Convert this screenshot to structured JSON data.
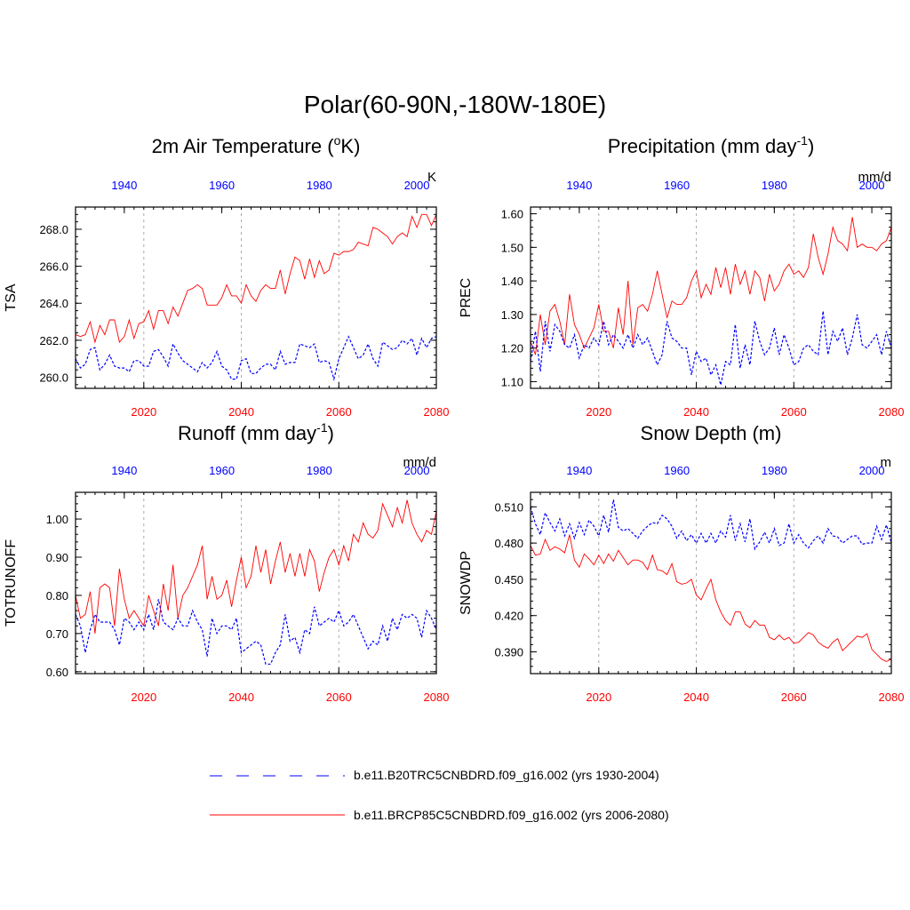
{
  "main_title": "Polar(60-90N,-180W-180E)",
  "colors": {
    "model_a": "#ff0000",
    "model_b": "#0000ff",
    "grid": "#aaaaaa",
    "axis": "#000000"
  },
  "legend": [
    {
      "label": "b.e11.B20TRC5CNBDRD.f09_g16.002 (yrs 1930-2004)",
      "color": "#0000ff",
      "style": "dashed"
    },
    {
      "label": "b.e11.BRCP85C5CNBDRD.f09_g16.002 (yrs 2006-2080)",
      "color": "#ff0000",
      "style": "solid"
    }
  ],
  "chart_data": [
    {
      "type": "line",
      "title_main": "2m Air Temperature (",
      "title_sup": "o",
      "title_end": "K)",
      "ylabel": "TSA",
      "units": "K",
      "ylim": [
        259.4,
        269.2
      ],
      "yticks": [
        260.0,
        262.0,
        264.0,
        266.0,
        268.0
      ],
      "ytick_labels": [
        "260.0",
        "262.0",
        "264.0",
        "266.0",
        "268.0"
      ],
      "xlim_bottom": [
        2006,
        2080
      ],
      "xticks_bottom": [
        "2020",
        "2040",
        "2060",
        "2080"
      ],
      "xlim_top": [
        1930,
        2004
      ],
      "xticks_top": [
        "1940",
        "1960",
        "1980",
        "2000"
      ],
      "series": [
        {
          "name": "b.e11.BRCP85C5CNBDRD.f09_g16.002",
          "x_start": 2006,
          "color": "#ff0000",
          "dash": false,
          "values": [
            262.3,
            262.2,
            262.3,
            263.0,
            261.9,
            262.8,
            262.3,
            263.1,
            263.1,
            261.9,
            262.2,
            263.1,
            262.1,
            262.9,
            263.0,
            263.6,
            262.6,
            263.6,
            263.6,
            262.9,
            263.8,
            263.3,
            264.0,
            264.7,
            264.8,
            265.0,
            264.8,
            263.9,
            263.9,
            263.9,
            264.3,
            265.0,
            264.4,
            264.4,
            264.0,
            265.0,
            264.4,
            264.1,
            264.7,
            265.0,
            264.8,
            264.8,
            265.8,
            264.5,
            265.6,
            266.5,
            266.3,
            265.3,
            266.4,
            265.4,
            266.3,
            265.6,
            265.8,
            266.7,
            266.6,
            266.8,
            266.8,
            266.9,
            267.3,
            267.2,
            267.1,
            268.1,
            268.0,
            267.8,
            267.6,
            267.2,
            267.6,
            267.8,
            267.6,
            268.7,
            268.1,
            268.8,
            268.8,
            268.2,
            268.8
          ]
        },
        {
          "name": "b.e11.B20TRC5CNBDRD.f09_g16.002",
          "x_start": 2006,
          "color": "#0000ff",
          "dash": true,
          "values": [
            261.0,
            260.5,
            260.7,
            261.5,
            261.6,
            260.4,
            260.7,
            261.2,
            260.6,
            260.5,
            260.5,
            260.3,
            260.9,
            260.9,
            260.6,
            260.6,
            261.4,
            261.5,
            261.1,
            260.6,
            261.8,
            261.3,
            260.9,
            260.7,
            260.5,
            260.3,
            260.8,
            260.5,
            260.8,
            261.4,
            260.6,
            260.4,
            259.9,
            259.9,
            260.9,
            261.0,
            260.2,
            260.2,
            260.5,
            260.7,
            260.7,
            260.4,
            261.4,
            260.7,
            260.8,
            260.8,
            261.8,
            261.7,
            261.6,
            261.8,
            260.8,
            260.9,
            260.8,
            259.9,
            261.0,
            261.6,
            262.2,
            261.6,
            261.0,
            261.2,
            261.8,
            261.0,
            260.6,
            261.9,
            261.7,
            261.5,
            261.6,
            262.0,
            261.8,
            262.1,
            261.2,
            262.1,
            261.6,
            262.1,
            262.2
          ]
        }
      ]
    },
    {
      "type": "line",
      "title_main": "Precipitation (mm day",
      "title_sup": "-1",
      "title_end": ")",
      "ylabel": "PREC",
      "units": "mm/d",
      "ylim": [
        1.08,
        1.62
      ],
      "yticks": [
        1.1,
        1.2,
        1.3,
        1.4,
        1.5,
        1.6
      ],
      "ytick_labels": [
        "1.10",
        "1.20",
        "1.30",
        "1.40",
        "1.50",
        "1.60"
      ],
      "xlim_bottom": [
        2006,
        2080
      ],
      "xticks_bottom": [
        "2020",
        "2040",
        "2060",
        "2080"
      ],
      "xlim_top": [
        1930,
        2004
      ],
      "xticks_top": [
        "1940",
        "1960",
        "1980",
        "2000"
      ],
      "series": [
        {
          "name": "b.e11.BRCP85C5CNBDRD.f09_g16.002",
          "x_start": 2006,
          "color": "#ff0000",
          "dash": false,
          "values": [
            1.22,
            1.18,
            1.3,
            1.21,
            1.31,
            1.33,
            1.28,
            1.21,
            1.36,
            1.27,
            1.24,
            1.2,
            1.23,
            1.26,
            1.33,
            1.25,
            1.25,
            1.2,
            1.32,
            1.24,
            1.4,
            1.21,
            1.32,
            1.33,
            1.31,
            1.36,
            1.43,
            1.36,
            1.29,
            1.34,
            1.33,
            1.33,
            1.35,
            1.4,
            1.43,
            1.35,
            1.39,
            1.36,
            1.44,
            1.38,
            1.44,
            1.36,
            1.45,
            1.39,
            1.43,
            1.36,
            1.43,
            1.41,
            1.34,
            1.42,
            1.37,
            1.39,
            1.43,
            1.45,
            1.42,
            1.43,
            1.41,
            1.44,
            1.54,
            1.47,
            1.42,
            1.48,
            1.56,
            1.52,
            1.51,
            1.49,
            1.59,
            1.5,
            1.51,
            1.5,
            1.5,
            1.49,
            1.51,
            1.52,
            1.56
          ]
        },
        {
          "name": "b.e11.B20TRC5CNBDRD.f09_g16.002",
          "x_start": 2006,
          "color": "#0000ff",
          "dash": true,
          "values": [
            1.16,
            1.25,
            1.13,
            1.28,
            1.19,
            1.27,
            1.25,
            1.21,
            1.2,
            1.24,
            1.17,
            1.21,
            1.2,
            1.23,
            1.21,
            1.28,
            1.21,
            1.24,
            1.22,
            1.2,
            1.24,
            1.2,
            1.24,
            1.21,
            1.23,
            1.19,
            1.15,
            1.18,
            1.28,
            1.23,
            1.22,
            1.2,
            1.2,
            1.12,
            1.19,
            1.16,
            1.17,
            1.12,
            1.15,
            1.09,
            1.16,
            1.15,
            1.27,
            1.14,
            1.21,
            1.15,
            1.28,
            1.22,
            1.18,
            1.2,
            1.26,
            1.18,
            1.24,
            1.2,
            1.15,
            1.16,
            1.2,
            1.21,
            1.19,
            1.18,
            1.31,
            1.18,
            1.25,
            1.22,
            1.26,
            1.18,
            1.23,
            1.3,
            1.21,
            1.2,
            1.22,
            1.24,
            1.18,
            1.25,
            1.2
          ]
        }
      ]
    },
    {
      "type": "line",
      "title_main": "Runoff (mm day",
      "title_sup": "-1",
      "title_end": ")",
      "ylabel": "TOTRUNOFF",
      "units": "mm/d",
      "ylim": [
        0.595,
        1.07
      ],
      "yticks": [
        0.6,
        0.7,
        0.8,
        0.9,
        1.0
      ],
      "ytick_labels": [
        "0.60",
        "0.70",
        "0.80",
        "0.90",
        "1.00"
      ],
      "xlim_bottom": [
        2006,
        2080
      ],
      "xticks_bottom": [
        "2020",
        "2040",
        "2060",
        "2080"
      ],
      "xlim_top": [
        1930,
        2004
      ],
      "xticks_top": [
        "1940",
        "1960",
        "1980",
        "2000"
      ],
      "series": [
        {
          "name": "b.e11.BRCP85C5CNBDRD.f09_g16.002",
          "x_start": 2006,
          "color": "#ff0000",
          "dash": false,
          "values": [
            0.8,
            0.74,
            0.75,
            0.81,
            0.7,
            0.82,
            0.83,
            0.82,
            0.72,
            0.87,
            0.79,
            0.74,
            0.76,
            0.74,
            0.72,
            0.8,
            0.76,
            0.72,
            0.83,
            0.76,
            0.88,
            0.74,
            0.8,
            0.82,
            0.85,
            0.88,
            0.93,
            0.79,
            0.85,
            0.79,
            0.8,
            0.84,
            0.77,
            0.84,
            0.9,
            0.82,
            0.85,
            0.93,
            0.86,
            0.92,
            0.83,
            0.89,
            0.94,
            0.86,
            0.91,
            0.85,
            0.91,
            0.85,
            0.92,
            0.89,
            0.81,
            0.86,
            0.9,
            0.92,
            0.88,
            0.93,
            0.89,
            0.96,
            0.94,
            0.99,
            0.96,
            0.95,
            0.97,
            1.04,
            1.01,
            0.98,
            1.03,
            0.99,
            1.05,
            0.99,
            0.96,
            0.94,
            0.97,
            0.96,
            1.02
          ]
        },
        {
          "name": "b.e11.B20TRC5CNBDRD.f09_g16.002",
          "x_start": 2006,
          "color": "#0000ff",
          "dash": true,
          "values": [
            0.75,
            0.72,
            0.65,
            0.71,
            0.75,
            0.73,
            0.73,
            0.73,
            0.71,
            0.67,
            0.74,
            0.73,
            0.71,
            0.73,
            0.71,
            0.75,
            0.71,
            0.79,
            0.73,
            0.72,
            0.71,
            0.74,
            0.72,
            0.72,
            0.76,
            0.73,
            0.71,
            0.64,
            0.74,
            0.7,
            0.72,
            0.72,
            0.71,
            0.74,
            0.65,
            0.66,
            0.67,
            0.68,
            0.67,
            0.62,
            0.62,
            0.65,
            0.67,
            0.75,
            0.68,
            0.69,
            0.65,
            0.71,
            0.7,
            0.77,
            0.72,
            0.73,
            0.74,
            0.73,
            0.76,
            0.72,
            0.73,
            0.75,
            0.72,
            0.69,
            0.66,
            0.68,
            0.67,
            0.72,
            0.68,
            0.74,
            0.71,
            0.75,
            0.74,
            0.75,
            0.74,
            0.69,
            0.76,
            0.74,
            0.71
          ]
        }
      ]
    },
    {
      "type": "line",
      "title_main": "Snow Depth (m)",
      "title_sup": "",
      "title_end": "",
      "ylabel": "SNOWDP",
      "units": "m",
      "ylim": [
        0.372,
        0.522
      ],
      "yticks": [
        0.39,
        0.42,
        0.45,
        0.48,
        0.51
      ],
      "ytick_labels": [
        "0.390",
        "0.420",
        "0.450",
        "0.480",
        "0.510"
      ],
      "xlim_bottom": [
        2006,
        2080
      ],
      "xticks_bottom": [
        "2020",
        "2040",
        "2060",
        "2080"
      ],
      "xlim_top": [
        1930,
        2004
      ],
      "xticks_top": [
        "1940",
        "1960",
        "1980",
        "2000"
      ],
      "series": [
        {
          "name": "b.e11.BRCP85C5CNBDRD.f09_g16.002",
          "x_start": 2006,
          "color": "#ff0000",
          "dash": false,
          "values": [
            0.478,
            0.47,
            0.471,
            0.483,
            0.474,
            0.477,
            0.475,
            0.472,
            0.487,
            0.466,
            0.46,
            0.471,
            0.467,
            0.462,
            0.47,
            0.463,
            0.471,
            0.465,
            0.474,
            0.468,
            0.462,
            0.466,
            0.466,
            0.464,
            0.458,
            0.47,
            0.458,
            0.457,
            0.454,
            0.463,
            0.448,
            0.446,
            0.447,
            0.45,
            0.437,
            0.433,
            0.442,
            0.45,
            0.433,
            0.423,
            0.416,
            0.412,
            0.423,
            0.423,
            0.413,
            0.41,
            0.416,
            0.412,
            0.412,
            0.402,
            0.4,
            0.404,
            0.4,
            0.402,
            0.397,
            0.398,
            0.402,
            0.406,
            0.404,
            0.398,
            0.395,
            0.393,
            0.398,
            0.401,
            0.391,
            0.395,
            0.399,
            0.403,
            0.402,
            0.405,
            0.392,
            0.388,
            0.384,
            0.382,
            0.384
          ]
        },
        {
          "name": "b.e11.B20TRC5CNBDRD.f09_g16.002",
          "x_start": 2006,
          "color": "#0000ff",
          "dash": true,
          "values": [
            0.51,
            0.496,
            0.487,
            0.505,
            0.497,
            0.49,
            0.5,
            0.486,
            0.496,
            0.484,
            0.497,
            0.487,
            0.499,
            0.494,
            0.486,
            0.503,
            0.489,
            0.516,
            0.493,
            0.49,
            0.492,
            0.488,
            0.484,
            0.49,
            0.494,
            0.497,
            0.496,
            0.503,
            0.5,
            0.494,
            0.484,
            0.49,
            0.482,
            0.487,
            0.48,
            0.488,
            0.48,
            0.488,
            0.48,
            0.49,
            0.485,
            0.503,
            0.482,
            0.496,
            0.481,
            0.5,
            0.475,
            0.481,
            0.489,
            0.48,
            0.492,
            0.478,
            0.48,
            0.496,
            0.48,
            0.487,
            0.48,
            0.476,
            0.482,
            0.486,
            0.48,
            0.492,
            0.486,
            0.485,
            0.48,
            0.483,
            0.486,
            0.486,
            0.479,
            0.48,
            0.48,
            0.494,
            0.483,
            0.495,
            0.48
          ]
        }
      ]
    }
  ]
}
